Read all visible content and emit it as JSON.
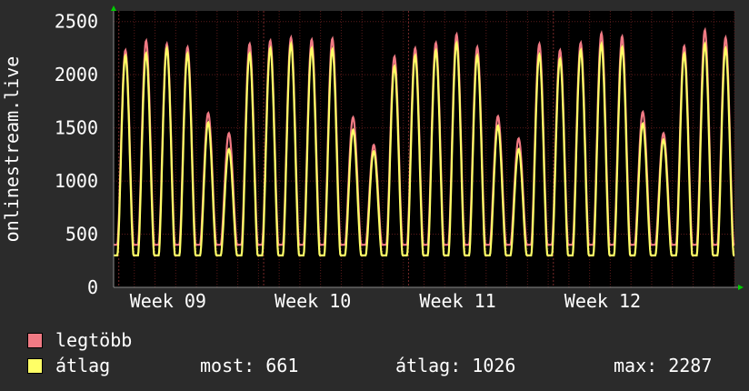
{
  "colors": {
    "background": "#2b2b2b",
    "plot_background": "#000000",
    "grid": "#5a1a1a",
    "axis": "#8a8a8a",
    "max_series": "#f07a84",
    "avg_series": "#ffff66",
    "arrow": "#00cc00"
  },
  "legend": {
    "items": [
      {
        "label": "legtöbb",
        "color": "#f07a84"
      },
      {
        "label": "átlag",
        "color": "#ffff66"
      }
    ],
    "stats": {
      "current": "most: 661",
      "average": "átlag: 1026",
      "max": "max: 2287"
    }
  },
  "chart_data": {
    "type": "area",
    "ylabel": "onlinestream.live",
    "ylim": [
      0,
      2600
    ],
    "yticks": [
      "0",
      "500",
      "1000",
      "1500",
      "2000",
      "2500"
    ],
    "xlabels": [
      "Week 09",
      "Week 10",
      "Week 11",
      "Week 12"
    ],
    "grid": true,
    "days": 30,
    "series": [
      {
        "name": "legtöbb",
        "daily_peaks": [
          2230,
          2320,
          2290,
          2260,
          1640,
          1450,
          2290,
          2320,
          2350,
          2330,
          2340,
          1600,
          1340,
          2170,
          2250,
          2300,
          2380,
          2260,
          1610,
          1400,
          2290,
          2230,
          2300,
          2390,
          2360,
          1650,
          1450,
          2270,
          2420,
          2350
        ],
        "daily_floor": 400
      },
      {
        "name": "átlag",
        "daily_peaks": [
          2180,
          2200,
          2250,
          2200,
          1550,
          1300,
          2200,
          2250,
          2290,
          2250,
          2240,
          1480,
          1280,
          2080,
          2180,
          2230,
          2300,
          2180,
          1520,
          1300,
          2190,
          2150,
          2230,
          2290,
          2260,
          1540,
          1390,
          2200,
          2290,
          2250
        ],
        "daily_floor": 300
      }
    ]
  }
}
